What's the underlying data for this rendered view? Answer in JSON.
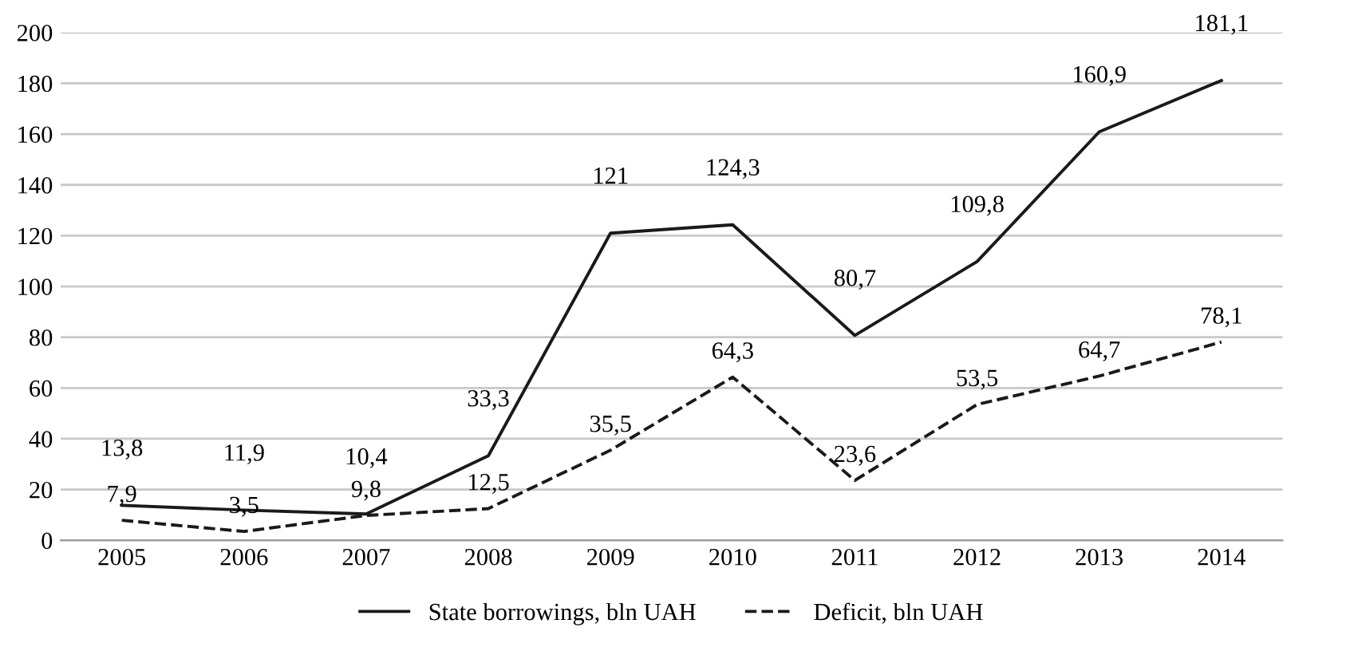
{
  "chart_data": {
    "type": "line",
    "categories": [
      "2005",
      "2006",
      "2007",
      "2008",
      "2009",
      "2010",
      "2011",
      "2012",
      "2013",
      "2014"
    ],
    "series": [
      {
        "name": "State borrowings, bln UAH",
        "color": "#1a1a1a",
        "line_style": "solid",
        "values": [
          13.8,
          11.9,
          10.4,
          33.3,
          121,
          124.3,
          80.7,
          109.8,
          160.9,
          181.1
        ],
        "value_labels": [
          "13,8",
          "11,9",
          "10,4",
          "33,3",
          "121",
          "124,3",
          "80,7",
          "109,8",
          "160,9",
          "181,1"
        ]
      },
      {
        "name": "Deficit, bln UAH",
        "color": "#1a1a1a",
        "line_style": "dashed",
        "values": [
          7.9,
          3.5,
          9.8,
          12.5,
          35.5,
          64.3,
          23.6,
          53.5,
          64.7,
          78.1
        ],
        "value_labels": [
          "7,9",
          "3,5",
          "9,8",
          "12,5",
          "35,5",
          "64,3",
          "23,6",
          "53,5",
          "64,7",
          "78,1"
        ]
      }
    ],
    "ylim": [
      0,
      200
    ],
    "yticks": [
      0,
      20,
      40,
      60,
      80,
      100,
      120,
      140,
      160,
      180,
      200
    ],
    "grid": "y",
    "legend": "bottom",
    "marker": "none"
  }
}
